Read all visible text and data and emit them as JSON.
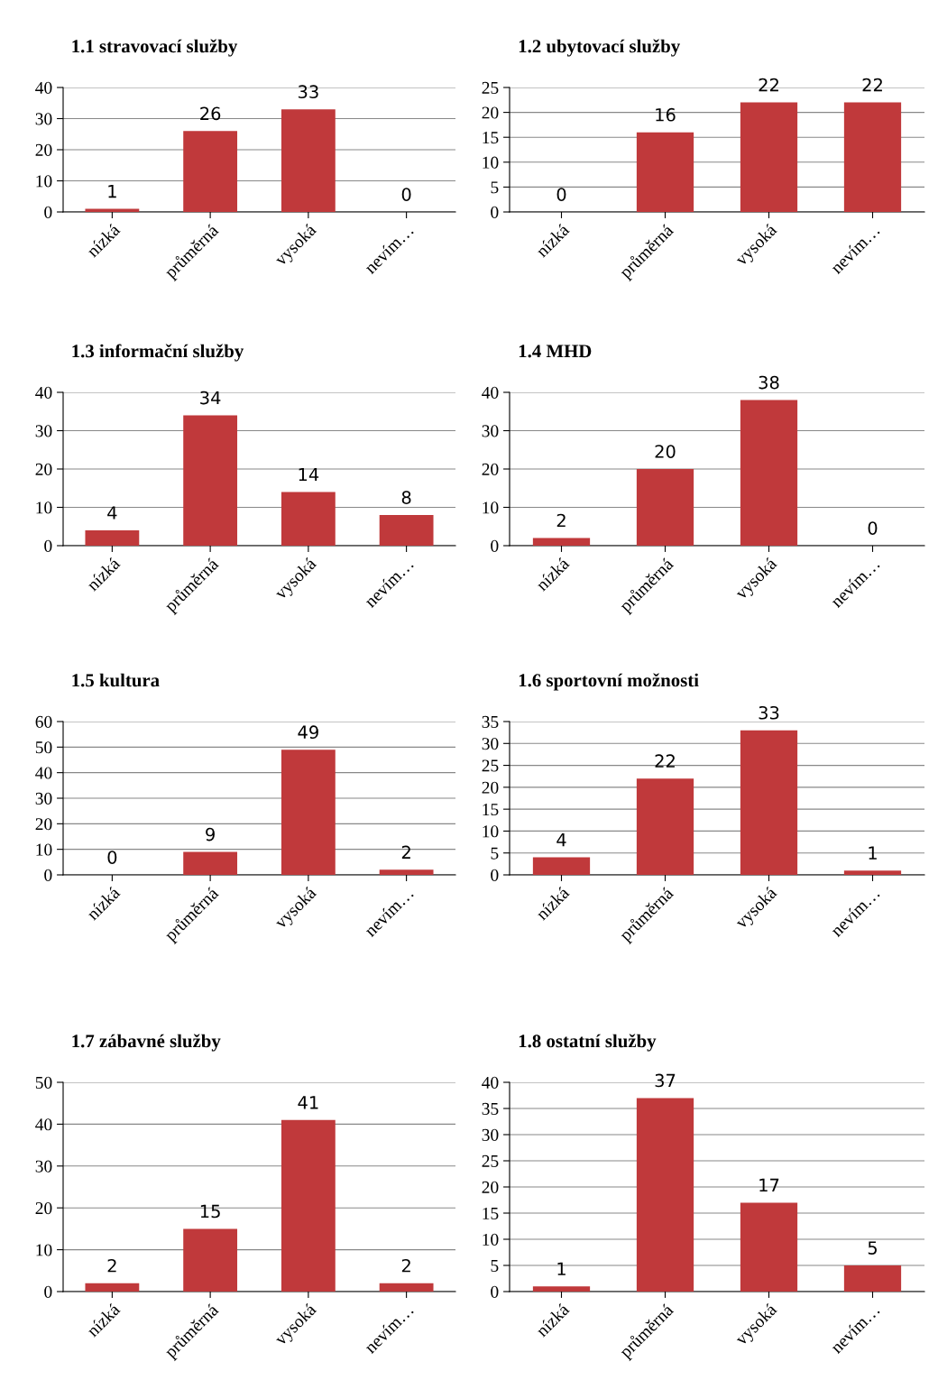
{
  "chart_data": [
    {
      "type": "bar",
      "title": "1.1 stravovací služby",
      "categories": [
        "nízká",
        "průměrná",
        "vysoká",
        "nevím…"
      ],
      "values": [
        1,
        26,
        33,
        0
      ],
      "color": "#c0393b",
      "ylim": [
        0,
        40
      ],
      "yticks": [
        0,
        10,
        20,
        30,
        40
      ],
      "grid": "y",
      "data_labels": true
    },
    {
      "type": "bar",
      "title": "1.2 ubytovací služby",
      "categories": [
        "nízká",
        "průměrná",
        "vysoká",
        "nevím…"
      ],
      "values": [
        0,
        16,
        22,
        22
      ],
      "color": "#c0393b",
      "ylim": [
        0,
        25
      ],
      "yticks": [
        0,
        5,
        10,
        15,
        20,
        25
      ],
      "grid": "y",
      "data_labels": true
    },
    {
      "type": "bar",
      "title": "1.3 informační služby",
      "categories": [
        "nízká",
        "průměrná",
        "vysoká",
        "nevím…"
      ],
      "values": [
        4,
        34,
        14,
        8
      ],
      "color": "#c0393b",
      "ylim": [
        0,
        40
      ],
      "yticks": [
        0,
        10,
        20,
        30,
        40
      ],
      "grid": "y",
      "data_labels": true
    },
    {
      "type": "bar",
      "title": "1.4 MHD",
      "categories": [
        "nízká",
        "průměrná",
        "vysoká",
        "nevím…"
      ],
      "values": [
        2,
        20,
        38,
        0
      ],
      "color": "#c0393b",
      "ylim": [
        0,
        40
      ],
      "yticks": [
        0,
        10,
        20,
        30,
        40
      ],
      "grid": "y",
      "data_labels": true
    },
    {
      "type": "bar",
      "title": "1.5 kultura",
      "categories": [
        "nízká",
        "průměrná",
        "vysoká",
        "nevím…"
      ],
      "values": [
        0,
        9,
        49,
        2
      ],
      "color": "#c0393b",
      "ylim": [
        0,
        60
      ],
      "yticks": [
        0,
        10,
        20,
        30,
        40,
        50,
        60
      ],
      "grid": "y",
      "data_labels": true
    },
    {
      "type": "bar",
      "title": "1.6 sportovní možnosti",
      "categories": [
        "nízká",
        "průměrná",
        "vysoká",
        "nevím…"
      ],
      "values": [
        4,
        22,
        33,
        1
      ],
      "color": "#c0393b",
      "ylim": [
        0,
        35
      ],
      "yticks": [
        0,
        5,
        10,
        15,
        20,
        25,
        30,
        35
      ],
      "grid": "y",
      "data_labels": true
    },
    {
      "type": "bar",
      "title": "1.7 zábavné služby",
      "categories": [
        "nízká",
        "průměrná",
        "vysoká",
        "nevím…"
      ],
      "values": [
        2,
        15,
        41,
        2
      ],
      "color": "#c0393b",
      "ylim": [
        0,
        50
      ],
      "yticks": [
        0,
        10,
        20,
        30,
        40,
        50
      ],
      "grid": "y",
      "data_labels": true
    },
    {
      "type": "bar",
      "title": "1.8 ostatní služby",
      "categories": [
        "nízká",
        "průměrná",
        "vysoká",
        "nevím…"
      ],
      "values": [
        1,
        37,
        17,
        5
      ],
      "color": "#c0393b",
      "ylim": [
        0,
        40
      ],
      "yticks": [
        0,
        5,
        10,
        15,
        20,
        25,
        30,
        35,
        40
      ],
      "grid": "y",
      "data_labels": true
    }
  ]
}
